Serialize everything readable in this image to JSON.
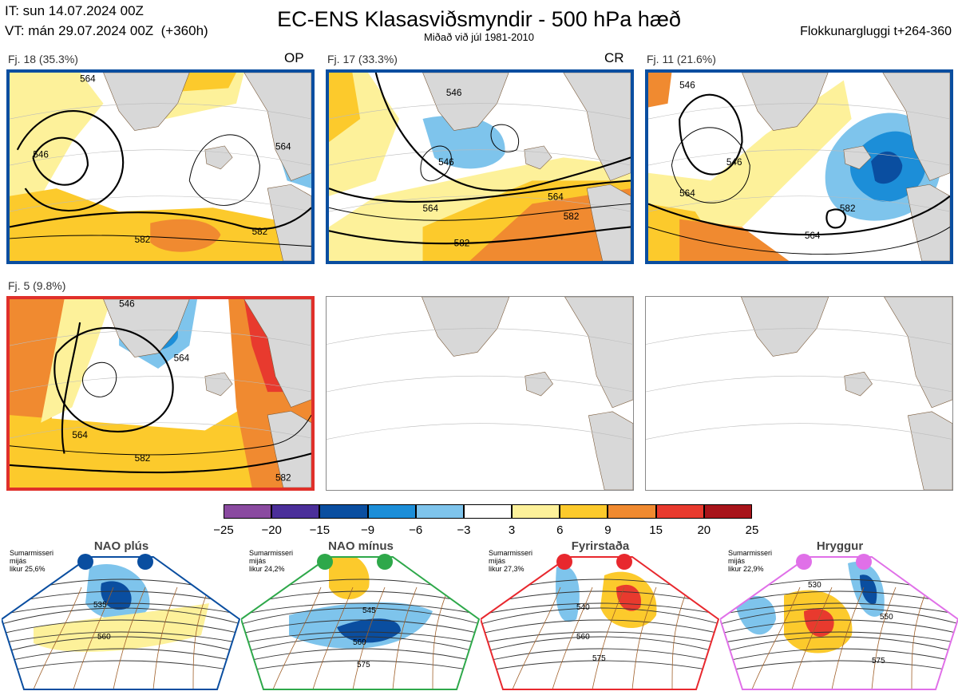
{
  "header": {
    "it_line": "IT: sun 14.07.2024 00Z",
    "vt_line": "VT: mán 29.07.2024 00Z  (+360h)",
    "title": "EC-ENS Klasasviðsmyndir - 500 hPa hæð",
    "subtitle": "Miðað við júl 1981-2010",
    "right": "Flokkunargluggi t+264-360"
  },
  "panels": [
    {
      "label": "Fj. 18 (35.3%)",
      "tag": "OP",
      "border": "#0a4ea0",
      "contours": [
        "564",
        "564",
        "582",
        "582",
        "546"
      ]
    },
    {
      "label": "Fj. 17 (33.3%)",
      "tag": "CR",
      "border": "#0a4ea0",
      "contours": [
        "546",
        "546",
        "564",
        "564",
        "582",
        "582"
      ]
    },
    {
      "label": "Fj. 11 (21.6%)",
      "tag": "",
      "border": "#0a4ea0",
      "contours": [
        "546",
        "546",
        "564",
        "564",
        "582"
      ]
    },
    {
      "label": "Fj. 5 (9.8%)",
      "tag": "",
      "border": "#e0302a",
      "contours": [
        "546",
        "564",
        "564",
        "582",
        "582"
      ]
    },
    {
      "label": "",
      "tag": "",
      "border": "#888888",
      "contours": []
    },
    {
      "label": "",
      "tag": "",
      "border": "#888888",
      "contours": []
    }
  ],
  "colorbar": {
    "ticks": [
      "−25",
      "−20",
      "−15",
      "−9",
      "−6",
      "−3",
      "3",
      "6",
      "9",
      "15",
      "20",
      "25"
    ],
    "colors": [
      "#8a4aa0",
      "#4b2f9a",
      "#0a4ea0",
      "#1c8ed8",
      "#7ec4ec",
      "#ffffff",
      "#fdf19a",
      "#fcca2c",
      "#f08a30",
      "#e83a2e",
      "#a8141a"
    ]
  },
  "regimes": [
    {
      "name": "NAO plús",
      "info_line1": "Sumarmisseri",
      "info_line2": "mijás",
      "info_line3": "likur 25,6%",
      "color": "#0a4ea0",
      "contours": [
        "535",
        "560"
      ]
    },
    {
      "name": "NAO mínus",
      "info_line1": "Sumarmisseri",
      "info_line2": "mijás",
      "info_line3": "likur 24,2%",
      "color": "#2ea84a",
      "contours": [
        "545",
        "560",
        "575"
      ]
    },
    {
      "name": "Fyrirstaða",
      "info_line1": "Sumarmisseri",
      "info_line2": "mijás",
      "info_line3": "likur 27,3%",
      "color": "#e8282e",
      "contours": [
        "540",
        "560",
        "575"
      ]
    },
    {
      "name": "Hryggur",
      "info_line1": "Sumarmisseri",
      "info_line2": "mijás",
      "info_line3": "likur 22,9%",
      "color": "#e070e8",
      "contours": [
        "530",
        "550",
        "575"
      ]
    }
  ],
  "chart_data": {
    "type": "heatmap",
    "title": "EC-ENS Klasasviðsmyndir - 500 hPa hæð",
    "subtitle": "Miðað við júl 1981-2010",
    "clusters": [
      {
        "name": "Fj. 18",
        "percent": 35.3,
        "tag": "OP"
      },
      {
        "name": "Fj. 17",
        "percent": 33.3,
        "tag": "CR"
      },
      {
        "name": "Fj. 11",
        "percent": 21.6
      },
      {
        "name": "Fj. 5",
        "percent": 9.8
      }
    ],
    "colorbar_levels": [
      -25,
      -20,
      -15,
      -9,
      -6,
      -3,
      3,
      6,
      9,
      15,
      20,
      25
    ],
    "regimes": [
      {
        "name": "NAO plús",
        "percent": 25.6
      },
      {
        "name": "NAO mínus",
        "percent": 24.2
      },
      {
        "name": "Fyrirstaða",
        "percent": 27.3
      },
      {
        "name": "Hryggur",
        "percent": 22.9
      }
    ]
  }
}
